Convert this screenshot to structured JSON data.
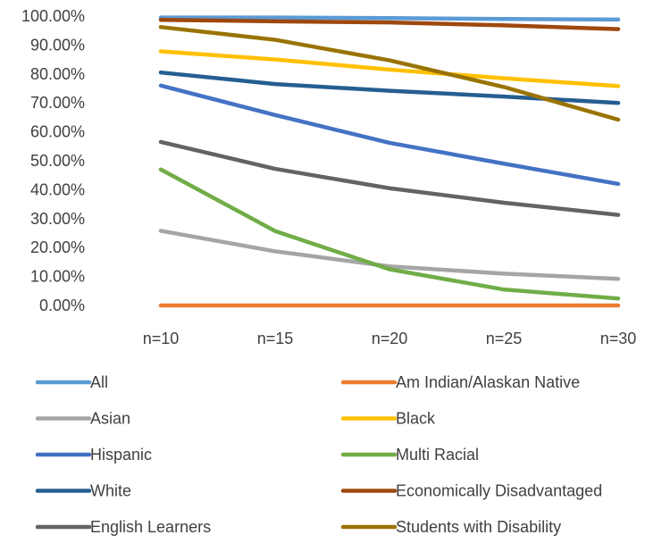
{
  "chart_data": {
    "type": "line",
    "title": "",
    "xlabel": "",
    "ylabel": "",
    "categories": [
      "n=10",
      "n=15",
      "n=20",
      "n=25",
      "n=30"
    ],
    "ylim": [
      0,
      100
    ],
    "y_ticks": [
      0,
      10,
      20,
      30,
      40,
      50,
      60,
      70,
      80,
      90,
      100
    ],
    "y_tick_labels": [
      "0.00%",
      "10.00%",
      "20.00%",
      "30.00%",
      "40.00%",
      "50.00%",
      "60.00%",
      "70.00%",
      "80.00%",
      "90.00%",
      "100.00%"
    ],
    "grid": false,
    "legend_position": "bottom",
    "series": [
      {
        "name": "All",
        "color": "#5B9BD5",
        "values": [
          99.5,
          99.5,
          99.3,
          99.0,
          98.8
        ]
      },
      {
        "name": "Am Indian/Alaskan Native",
        "color": "#ED7D31",
        "values": [
          0,
          0,
          0,
          0,
          0
        ]
      },
      {
        "name": "Asian",
        "color": "#A5A5A5",
        "values": [
          25.8,
          18.7,
          13.5,
          11.0,
          9.2
        ]
      },
      {
        "name": "Black",
        "color": "#FFC000",
        "values": [
          87.8,
          85.0,
          81.5,
          78.5,
          75.8
        ]
      },
      {
        "name": "Hispanic",
        "color": "#4472C4",
        "values": [
          76.0,
          65.8,
          56.2,
          49.0,
          42.0
        ]
      },
      {
        "name": "Multi Racial",
        "color": "#70AD47",
        "values": [
          47.0,
          25.7,
          12.5,
          5.5,
          2.4
        ]
      },
      {
        "name": "White",
        "color": "#255E91",
        "values": [
          80.5,
          76.5,
          74.2,
          72.2,
          70.0
        ]
      },
      {
        "name": "Economically Disadvantaged",
        "color": "#9E480E",
        "values": [
          98.7,
          98.2,
          97.8,
          96.8,
          95.5
        ]
      },
      {
        "name": "English Learners",
        "color": "#636363",
        "values": [
          56.5,
          47.2,
          40.5,
          35.5,
          31.3
        ]
      },
      {
        "name": "Students with Disability",
        "color": "#997300",
        "values": [
          96.2,
          91.8,
          84.7,
          75.5,
          64.2
        ]
      }
    ]
  }
}
